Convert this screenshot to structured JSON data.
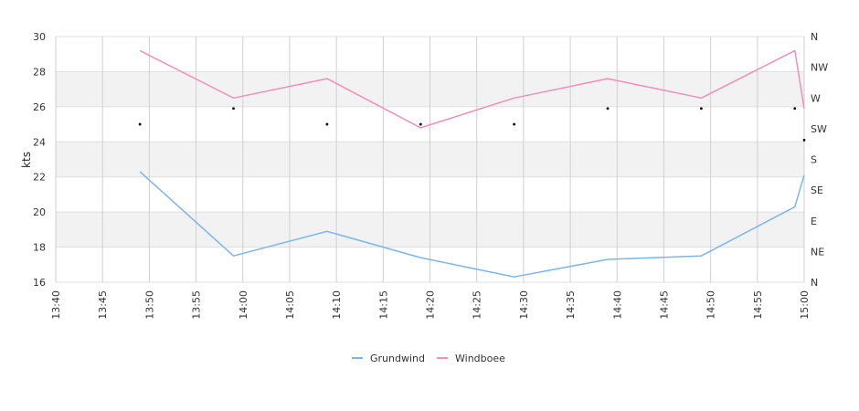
{
  "chart_data": {
    "type": "line",
    "ylabel": "kts",
    "ylim": [
      16,
      30
    ],
    "yticks": [
      "16",
      "18",
      "20",
      "22",
      "24",
      "26",
      "28",
      "30"
    ],
    "xticks": [
      "13:40",
      "13:45",
      "13:50",
      "13:55",
      "14:00",
      "14:05",
      "14:10",
      "14:15",
      "14:20",
      "14:25",
      "14:30",
      "14:35",
      "14:40",
      "14:45",
      "14:50",
      "14:55",
      "15:00"
    ],
    "right_axis_labels": [
      "N",
      "NE",
      "E",
      "SE",
      "S",
      "SW",
      "W",
      "NW",
      "N"
    ],
    "x": [
      "13:49",
      "13:59",
      "14:09",
      "14:19",
      "14:29",
      "14:39",
      "14:49",
      "14:59",
      "15:00"
    ],
    "series": [
      {
        "name": "Grundwind",
        "color": "#7cb5ec",
        "values": [
          22.3,
          17.5,
          18.9,
          17.4,
          16.3,
          17.3,
          17.5,
          20.3,
          22.1
        ]
      },
      {
        "name": "Windboee",
        "color": "#f28fb8",
        "values": [
          29.2,
          26.5,
          27.6,
          24.8,
          26.5,
          27.6,
          26.5,
          29.2,
          25.9
        ]
      }
    ],
    "direction_points": [
      {
        "x": "13:49",
        "y": 25.0
      },
      {
        "x": "13:59",
        "y": 25.9
      },
      {
        "x": "14:09",
        "y": 25.0
      },
      {
        "x": "14:19",
        "y": 25.0
      },
      {
        "x": "14:29",
        "y": 25.0
      },
      {
        "x": "14:39",
        "y": 25.9
      },
      {
        "x": "14:49",
        "y": 25.9
      },
      {
        "x": "14:59",
        "y": 25.9
      },
      {
        "x": "15:00",
        "y": 24.1
      }
    ],
    "grid": true,
    "legend": "bottom-center"
  }
}
